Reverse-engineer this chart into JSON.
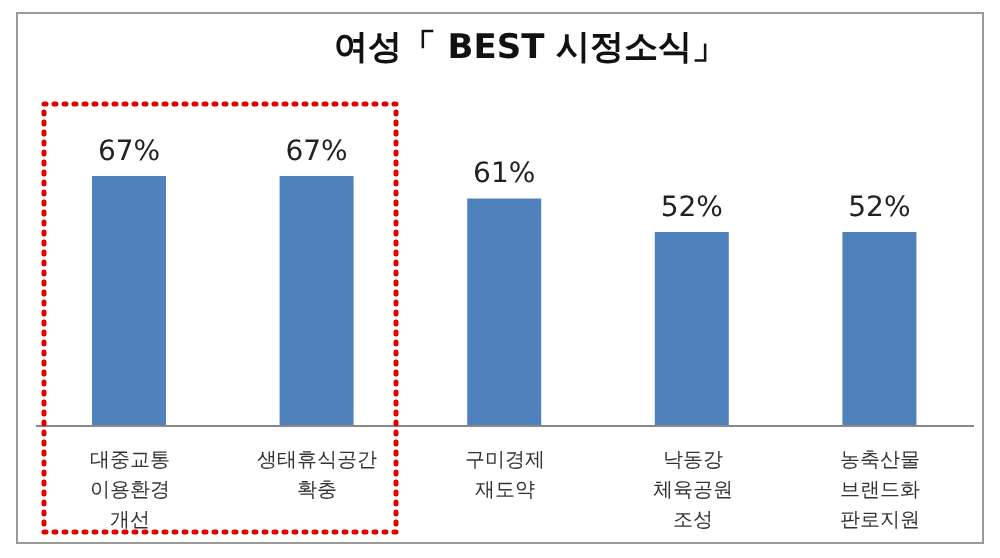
{
  "chart_data": {
    "type": "bar",
    "title": "여성「 BEST 시정소식」",
    "categories": [
      "대중교통 이용환경 개선",
      "생태휴식공간 확충",
      "구미경제 재도약",
      "낙동강 체육공원 조성",
      "농축산물 브랜드화 판로지원"
    ],
    "values": [
      67,
      67,
      61,
      52,
      52
    ],
    "value_labels": [
      "67%",
      "67%",
      "61%",
      "52%",
      "52%"
    ],
    "color": "#4f81bd",
    "grid": false,
    "legend": false
  }
}
